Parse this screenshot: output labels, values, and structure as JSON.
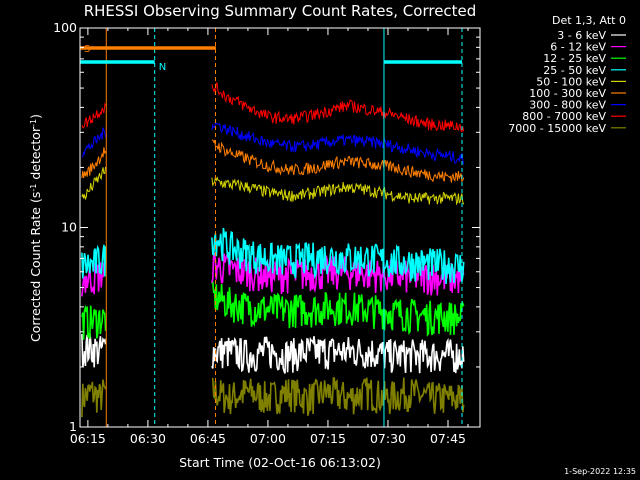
{
  "chart_data": {
    "type": "line",
    "title": "RHESSI Observing Summary Count Rates, Corrected",
    "xlabel": "Start Time (02-Oct-16 06:13:02)",
    "ylabel": "Corrected Count Rate (s⁻¹ detector⁻¹)",
    "ylabel_parts": [
      "Corrected Count Rate (s",
      "-1",
      " detector",
      "-1",
      ")"
    ],
    "yscale": "log",
    "ylim": [
      1,
      100
    ],
    "y_tick_labels": [
      "1",
      "10",
      "100"
    ],
    "x_tick_labels": [
      "06:15",
      "06:30",
      "06:45",
      "07:00",
      "07:15",
      "07:30",
      "07:45"
    ],
    "x_ticks_minutes": [
      15,
      30,
      45,
      60,
      75,
      90,
      105
    ],
    "xlim_minutes": [
      13.03,
      113
    ],
    "legend_title": "Det 1,3, Att 0",
    "legend_position": "right",
    "gaps_minutes": [
      [
        19.5,
        46.0
      ]
    ],
    "series": [
      {
        "name": "3 - 6 keV",
        "color": "#ffffff",
        "x": [
          13.5,
          16,
          18,
          19,
          47,
          50,
          55,
          60,
          65,
          70,
          75,
          80,
          85,
          90,
          95,
          100,
          105,
          109
        ],
        "values": [
          2.5,
          2.5,
          2.4,
          2.5,
          2.4,
          2.4,
          2.3,
          2.4,
          2.3,
          2.4,
          2.4,
          2.4,
          2.4,
          2.3,
          2.3,
          2.3,
          2.3,
          2.3
        ]
      },
      {
        "name": "6 - 12 keV",
        "color": "#ff00ff",
        "x": [
          13.5,
          16,
          18,
          19,
          47,
          50,
          55,
          60,
          65,
          70,
          75,
          80,
          85,
          90,
          95,
          100,
          105,
          109
        ],
        "values": [
          5.5,
          5.6,
          5.8,
          6.0,
          6.5,
          6.2,
          6.0,
          5.8,
          5.8,
          5.9,
          6.0,
          6.0,
          5.9,
          5.8,
          5.7,
          5.7,
          5.6,
          5.6
        ]
      },
      {
        "name": "12 - 25 keV",
        "color": "#00ff00",
        "x": [
          13.5,
          16,
          18,
          19,
          47,
          50,
          55,
          60,
          65,
          70,
          75,
          80,
          85,
          90,
          95,
          100,
          105,
          109
        ],
        "values": [
          3.4,
          3.4,
          3.5,
          3.5,
          4.5,
          4.2,
          4.0,
          3.9,
          3.9,
          3.9,
          4.0,
          4.0,
          3.9,
          3.8,
          3.7,
          3.6,
          3.6,
          3.5
        ]
      },
      {
        "name": "25 - 50 keV",
        "color": "#00ffff",
        "x": [
          13.5,
          16,
          18,
          19,
          47,
          50,
          55,
          60,
          65,
          70,
          75,
          80,
          85,
          90,
          95,
          100,
          105,
          109
        ],
        "values": [
          6.5,
          6.5,
          6.8,
          7.0,
          9.0,
          8.0,
          7.4,
          7.0,
          6.9,
          7.0,
          7.2,
          7.1,
          7.0,
          6.8,
          6.7,
          6.6,
          6.5,
          6.4
        ]
      },
      {
        "name": "50 - 100 keV",
        "color": "#d4d400",
        "x": [
          13.5,
          15,
          17,
          19,
          47,
          50,
          55,
          60,
          65,
          68,
          72,
          76,
          80,
          84,
          88,
          92,
          96,
          100,
          104,
          109
        ],
        "values": [
          14,
          15,
          17,
          19,
          17,
          16.5,
          16,
          15,
          14.5,
          14.5,
          15,
          15.5,
          16,
          15.5,
          15,
          14.5,
          14,
          14,
          14,
          14
        ]
      },
      {
        "name": "100 - 300 keV",
        "color": "#ff7f00",
        "x": [
          13.5,
          15,
          17,
          19,
          47,
          50,
          55,
          60,
          65,
          68,
          72,
          76,
          80,
          84,
          88,
          92,
          96,
          100,
          104,
          109
        ],
        "values": [
          18,
          19,
          21,
          24,
          26,
          24,
          22,
          20.5,
          19.5,
          19.5,
          20,
          21,
          21.5,
          21,
          20.5,
          20,
          19,
          18.5,
          18,
          18
        ]
      },
      {
        "name": "300 - 800 keV",
        "color": "#0000ff",
        "x": [
          13.5,
          15,
          17,
          19,
          47,
          50,
          55,
          60,
          65,
          68,
          72,
          76,
          80,
          84,
          88,
          92,
          96,
          100,
          104,
          109
        ],
        "values": [
          24,
          25,
          27,
          30,
          33,
          31,
          28.5,
          26.5,
          25.5,
          25.5,
          26,
          27,
          27.5,
          27,
          26.5,
          25.5,
          24.5,
          23.5,
          23,
          22
        ]
      },
      {
        "name": "800 - 7000 keV",
        "color": "#ff0000",
        "x": [
          13.5,
          15,
          17,
          19,
          47,
          50,
          55,
          60,
          65,
          68,
          72,
          76,
          80,
          84,
          88,
          92,
          96,
          100,
          104,
          109
        ],
        "values": [
          33,
          34,
          37,
          40,
          50,
          45,
          40,
          36,
          35,
          35.5,
          37,
          39,
          41,
          39.5,
          38,
          36.5,
          34.5,
          33,
          32.5,
          32
        ]
      },
      {
        "name": "7000 - 15000 keV",
        "color": "#808000",
        "x": [
          13.5,
          16,
          18,
          19,
          47,
          50,
          55,
          60,
          65,
          70,
          75,
          80,
          85,
          90,
          95,
          100,
          105,
          109
        ],
        "values": [
          1.4,
          1.5,
          1.4,
          1.5,
          1.5,
          1.4,
          1.5,
          1.4,
          1.5,
          1.4,
          1.5,
          1.4,
          1.5,
          1.4,
          1.5,
          1.4,
          1.4,
          1.4
        ]
      }
    ],
    "flags": [
      {
        "label": "S",
        "color": "#ff7f00",
        "level": 0.975,
        "ranges": [
          [
            13.03,
            47.0
          ]
        ]
      },
      {
        "label": "N",
        "color": "#00ffff",
        "level": 0.955,
        "ranges": [
          [
            13.03,
            31.7
          ],
          [
            89.0,
            108.5
          ]
        ]
      }
    ],
    "vertical_markers": [
      {
        "x": 19.6,
        "color": "#ff7f00",
        "style": "solid"
      },
      {
        "x": 31.7,
        "color": "#00ffff",
        "style": "dashed"
      },
      {
        "x": 46.9,
        "color": "#ff7f00",
        "style": "dashed"
      },
      {
        "x": 89.0,
        "color": "#00ffff",
        "style": "solid"
      },
      {
        "x": 108.5,
        "color": "#00ffff",
        "style": "dashed"
      }
    ]
  },
  "footer": {
    "timestamp": "1-Sep-2022 12:35"
  }
}
